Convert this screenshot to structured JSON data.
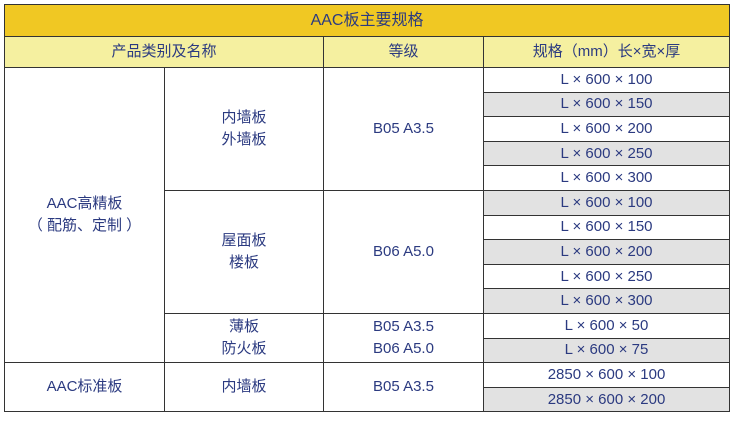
{
  "title": "AAC板主要规格",
  "headers": [
    "产品类别及名称",
    "等级",
    "规格（mm）长×宽×厚"
  ],
  "groups": {
    "hp": {
      "name1": "AAC高精板",
      "name2": "（ 配筋、定制 ）"
    },
    "std": {
      "name": "AAC标准板"
    }
  },
  "subs": [
    {
      "l1": "内墙板",
      "l2": "外墙板",
      "grade": "B05 A3.5",
      "specs": [
        "L × 600 × 100",
        "L × 600 × 150",
        "L × 600 × 200",
        "L × 600 × 250",
        "L × 600 × 300"
      ]
    },
    {
      "l1": "屋面板",
      "l2": "楼板",
      "grade": "B06 A5.0",
      "specs": [
        "L × 600 × 100",
        "L × 600 × 150",
        "L × 600 × 200",
        "L × 600 × 250",
        "L × 600 × 300"
      ]
    },
    {
      "l1": "薄板",
      "l2": "防火板",
      "grade1": "B05 A3.5",
      "grade2": "B06 A5.0",
      "specs": [
        "L × 600 × 50",
        "L × 600 × 75"
      ]
    },
    {
      "l1": "内墙板",
      "grade": "B05 A3.5",
      "specs": [
        "2850 × 600 × 100",
        "2850 × 600 × 200"
      ]
    }
  ],
  "colors": {
    "title_bg": "#f0c823",
    "header_bg": "#f5f0a0",
    "alt_row": "#e2e2e2",
    "text": "#2b3a80"
  }
}
